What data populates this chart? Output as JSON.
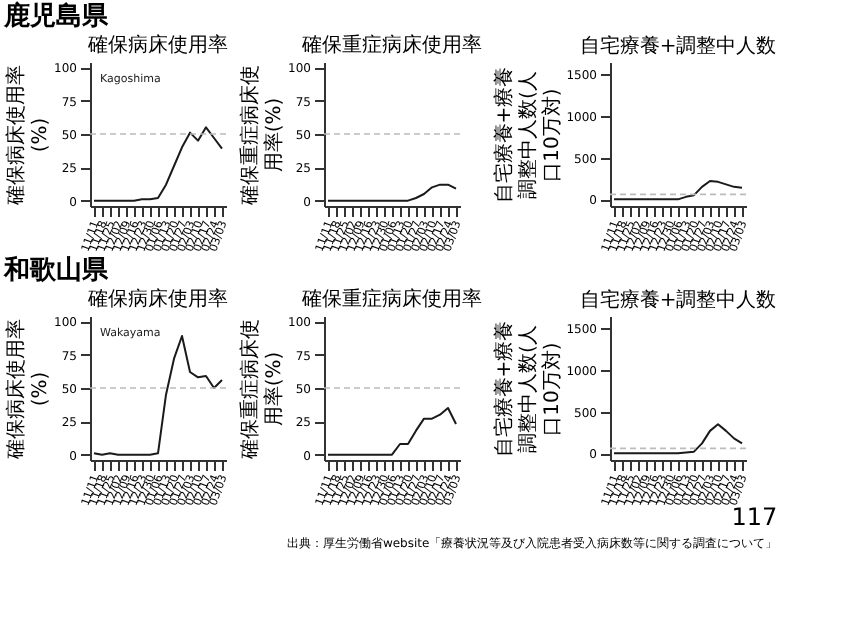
{
  "chart_data": [
    {
      "type": "line",
      "title": "確保病床使用率",
      "ylabel": "確保病床使用率(%)",
      "annotations": [
        "鹿児島県",
        "Kagoshima"
      ],
      "categories": [
        "11/11",
        "11/18",
        "11/25",
        "12/02",
        "12/09",
        "12/16",
        "12/23",
        "12/30",
        "01/06",
        "01/13",
        "01/20",
        "01/27",
        "02/03",
        "02/10",
        "02/17",
        "02/24",
        "03/03"
      ],
      "series": [
        {
          "color": "#1a1a1a",
          "values": [
            0,
            0,
            0,
            0,
            0,
            0,
            1,
            1,
            2,
            12,
            26,
            40,
            51,
            45,
            55,
            47,
            39
          ]
        }
      ],
      "ylim": [
        -4,
        104
      ],
      "yticks": [
        0,
        25,
        50,
        75,
        100
      ],
      "ref_lines": [
        {
          "axis": "y",
          "value": 50,
          "color": "#bbbbbb",
          "line_style": "dashed"
        }
      ],
      "grid": false
    },
    {
      "type": "line",
      "title": "確保重症病床使用率",
      "ylabel": "確保重症病床使用率(%)",
      "categories": [
        "11/11",
        "11/18",
        "11/25",
        "12/02",
        "12/09",
        "12/16",
        "12/23",
        "12/30",
        "01/06",
        "01/13",
        "01/20",
        "01/27",
        "02/03",
        "02/10",
        "02/17",
        "02/24",
        "03/03"
      ],
      "series": [
        {
          "color": "#1a1a1a",
          "values": [
            0,
            0,
            0,
            0,
            0,
            0,
            0,
            0,
            0,
            0,
            0,
            2,
            5,
            10,
            12,
            12,
            9
          ]
        }
      ],
      "ylim": [
        -4,
        104
      ],
      "yticks": [
        0,
        25,
        50,
        75,
        100
      ],
      "ref_lines": [
        {
          "axis": "y",
          "value": 50,
          "color": "#bbbbbb",
          "line_style": "dashed"
        }
      ],
      "grid": false
    },
    {
      "type": "line",
      "title": "自宅療養+調整中人数",
      "ylabel": "自宅療養+療養調整中人数(人口10万対)",
      "categories": [
        "11/11",
        "11/18",
        "11/25",
        "12/02",
        "12/09",
        "12/16",
        "12/23",
        "12/30",
        "01/06",
        "01/13",
        "01/20",
        "01/27",
        "02/03",
        "02/10",
        "02/17",
        "02/24",
        "03/03"
      ],
      "series": [
        {
          "color": "#1a1a1a",
          "values": [
            0,
            0,
            0,
            0,
            0,
            0,
            0,
            0,
            0,
            30,
            50,
            150,
            220,
            210,
            180,
            150,
            140
          ]
        }
      ],
      "ylim": [
        -80,
        1650
      ],
      "yticks": [
        0,
        500,
        1000,
        1500
      ],
      "ref_lines": [
        {
          "axis": "y",
          "value": 60,
          "color": "#bbbbbb",
          "line_style": "dashed"
        }
      ],
      "grid": false
    },
    {
      "type": "line",
      "title": "確保病床使用率",
      "ylabel": "確保病床使用率(%)",
      "annotations": [
        "和歌山県",
        "Wakayama"
      ],
      "categories": [
        "11/11",
        "11/18",
        "11/25",
        "12/02",
        "12/09",
        "12/16",
        "12/23",
        "12/30",
        "01/06",
        "01/13",
        "01/20",
        "01/27",
        "02/03",
        "02/10",
        "02/17",
        "02/24",
        "03/03"
      ],
      "series": [
        {
          "color": "#1a1a1a",
          "values": [
            1,
            0,
            1,
            0,
            0,
            0,
            0,
            0,
            1,
            45,
            72,
            89,
            62,
            58,
            59,
            50,
            56
          ]
        }
      ],
      "ylim": [
        -4,
        104
      ],
      "yticks": [
        0,
        25,
        50,
        75,
        100
      ],
      "ref_lines": [
        {
          "axis": "y",
          "value": 50,
          "color": "#bbbbbb",
          "line_style": "dashed"
        }
      ],
      "grid": false
    },
    {
      "type": "line",
      "title": "確保重症病床使用率",
      "ylabel": "確保重症病床使用率(%)",
      "categories": [
        "11/11",
        "11/18",
        "11/25",
        "12/02",
        "12/09",
        "12/16",
        "12/23",
        "12/30",
        "01/06",
        "01/13",
        "01/20",
        "01/27",
        "02/03",
        "02/10",
        "02/17",
        "02/24",
        "03/03"
      ],
      "series": [
        {
          "color": "#1a1a1a",
          "values": [
            0,
            0,
            0,
            0,
            0,
            0,
            0,
            0,
            0,
            8,
            8,
            18,
            27,
            27,
            30,
            35,
            23
          ]
        }
      ],
      "ylim": [
        -4,
        104
      ],
      "yticks": [
        0,
        25,
        50,
        75,
        100
      ],
      "ref_lines": [
        {
          "axis": "y",
          "value": 50,
          "color": "#bbbbbb",
          "line_style": "dashed"
        }
      ],
      "grid": false
    },
    {
      "type": "line",
      "title": "自宅療養+調整中人数",
      "ylabel": "自宅療養+療養調整中人数(人口10万対)",
      "annotations": [
        "117",
        "出典：厚生労働省website「療養状況等及び入院患者受入病床数等に関する調査について」"
      ],
      "categories": [
        "11/11",
        "11/18",
        "11/25",
        "12/02",
        "12/09",
        "12/16",
        "12/23",
        "12/30",
        "01/06",
        "01/13",
        "01/20",
        "01/27",
        "02/03",
        "02/10",
        "02/17",
        "02/24",
        "03/03"
      ],
      "series": [
        {
          "color": "#1a1a1a",
          "values": [
            0,
            0,
            0,
            0,
            0,
            0,
            0,
            0,
            0,
            10,
            20,
            120,
            270,
            350,
            270,
            180,
            120
          ]
        }
      ],
      "ylim": [
        -80,
        1650
      ],
      "yticks": [
        0,
        500,
        1000,
        1500
      ],
      "ref_lines": [
        {
          "axis": "y",
          "value": 60,
          "color": "#bbbbbb",
          "line_style": "dashed"
        }
      ],
      "grid": false
    }
  ]
}
